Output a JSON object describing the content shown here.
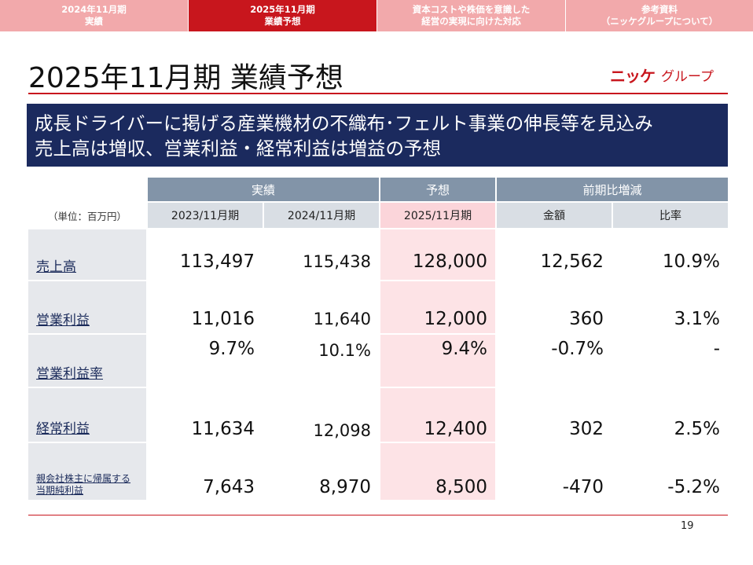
{
  "tabs": [
    {
      "line1": "2024年11月期",
      "line2": "実績"
    },
    {
      "line1": "2025年11月期",
      "line2": "業績予想"
    },
    {
      "line1": "資本コストや株価を意識した",
      "line2": "経営の実現に向けた対応"
    },
    {
      "line1": "参考資料",
      "line2": "（ニッケグループについて）"
    }
  ],
  "title": "2025年11月期 業績予想",
  "logo": {
    "mark": "ニッケ",
    "text": "グループ"
  },
  "banner": {
    "line1": "成長ドライバーに掲げる産業機材の不織布･フェルト事業の伸長等を見込み",
    "line2": "売上高は増収、営業利益・経常利益は増益の予想"
  },
  "table": {
    "unit": "（単位：百万円）",
    "group_headers": {
      "actual": "実績",
      "forecast": "予想",
      "change": "前期比増減"
    },
    "col_headers": [
      "2023/11月期",
      "2024/11月期",
      "2025/11月期",
      "金額",
      "比率"
    ],
    "rows": [
      {
        "label": "売上高",
        "values": [
          "113,497",
          "115,438",
          "128,000",
          "12,562",
          "10.9%"
        ]
      },
      {
        "label": "営業利益",
        "values": [
          "11,016",
          "11,640",
          "12,000",
          "360",
          "3.1%"
        ]
      },
      {
        "label": "営業利益率",
        "values": [
          "9.7%",
          "10.1%",
          "9.4%",
          "-0.7%",
          "-"
        ]
      },
      {
        "label": "経常利益",
        "values": [
          "11,634",
          "12,098",
          "12,400",
          "302",
          "2.5%"
        ]
      },
      {
        "label_line1": "親会社株主に帰属する",
        "label_line2": "当期純利益",
        "values": [
          "7,643",
          "8,970",
          "8,500",
          "-470",
          "-5.2%"
        ]
      }
    ]
  },
  "page_number": "19",
  "colors": {
    "accent": "#c8161d",
    "navy": "#1b2a5e",
    "header": "#8294a8"
  }
}
